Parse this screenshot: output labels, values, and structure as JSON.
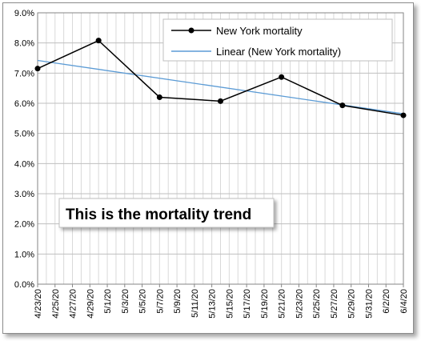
{
  "chart_data": {
    "type": "line",
    "x_tick_labels": [
      "4/23/20",
      "4/25/20",
      "4/27/20",
      "4/29/20",
      "5/1/20",
      "5/3/20",
      "5/5/20",
      "5/7/20",
      "5/9/20",
      "5/11/20",
      "5/13/20",
      "5/15/20",
      "5/17/20",
      "5/19/20",
      "5/21/20",
      "5/23/20",
      "5/25/20",
      "5/27/20",
      "5/29/20",
      "5/31/20",
      "6/2/20",
      "6/4/20"
    ],
    "y_tick_labels": [
      "0.0%",
      "1.0%",
      "2.0%",
      "3.0%",
      "4.0%",
      "5.0%",
      "6.0%",
      "7.0%",
      "8.0%",
      "9.0%"
    ],
    "ylim": [
      0,
      9
    ],
    "xlim": [
      "4/23/20",
      "6/4/20"
    ],
    "grid": true,
    "legend_position": "top-right",
    "series": [
      {
        "name": "New York mortality",
        "color": "#000000",
        "marker": "circle",
        "points": [
          {
            "x": "4/23/20",
            "y": 7.15
          },
          {
            "x": "4/30/20",
            "y": 8.08
          },
          {
            "x": "5/7/20",
            "y": 6.2
          },
          {
            "x": "5/14/20",
            "y": 6.07
          },
          {
            "x": "5/21/20",
            "y": 6.87
          },
          {
            "x": "5/28/20",
            "y": 5.93
          },
          {
            "x": "6/4/20",
            "y": 5.6
          }
        ]
      },
      {
        "name": "Linear (New York mortality)",
        "color": "#5b9bd5",
        "points": [
          {
            "x": "4/23/20",
            "y": 7.42
          },
          {
            "x": "6/4/20",
            "y": 5.65
          }
        ]
      }
    ],
    "annotation": "This is the mortality trend"
  }
}
